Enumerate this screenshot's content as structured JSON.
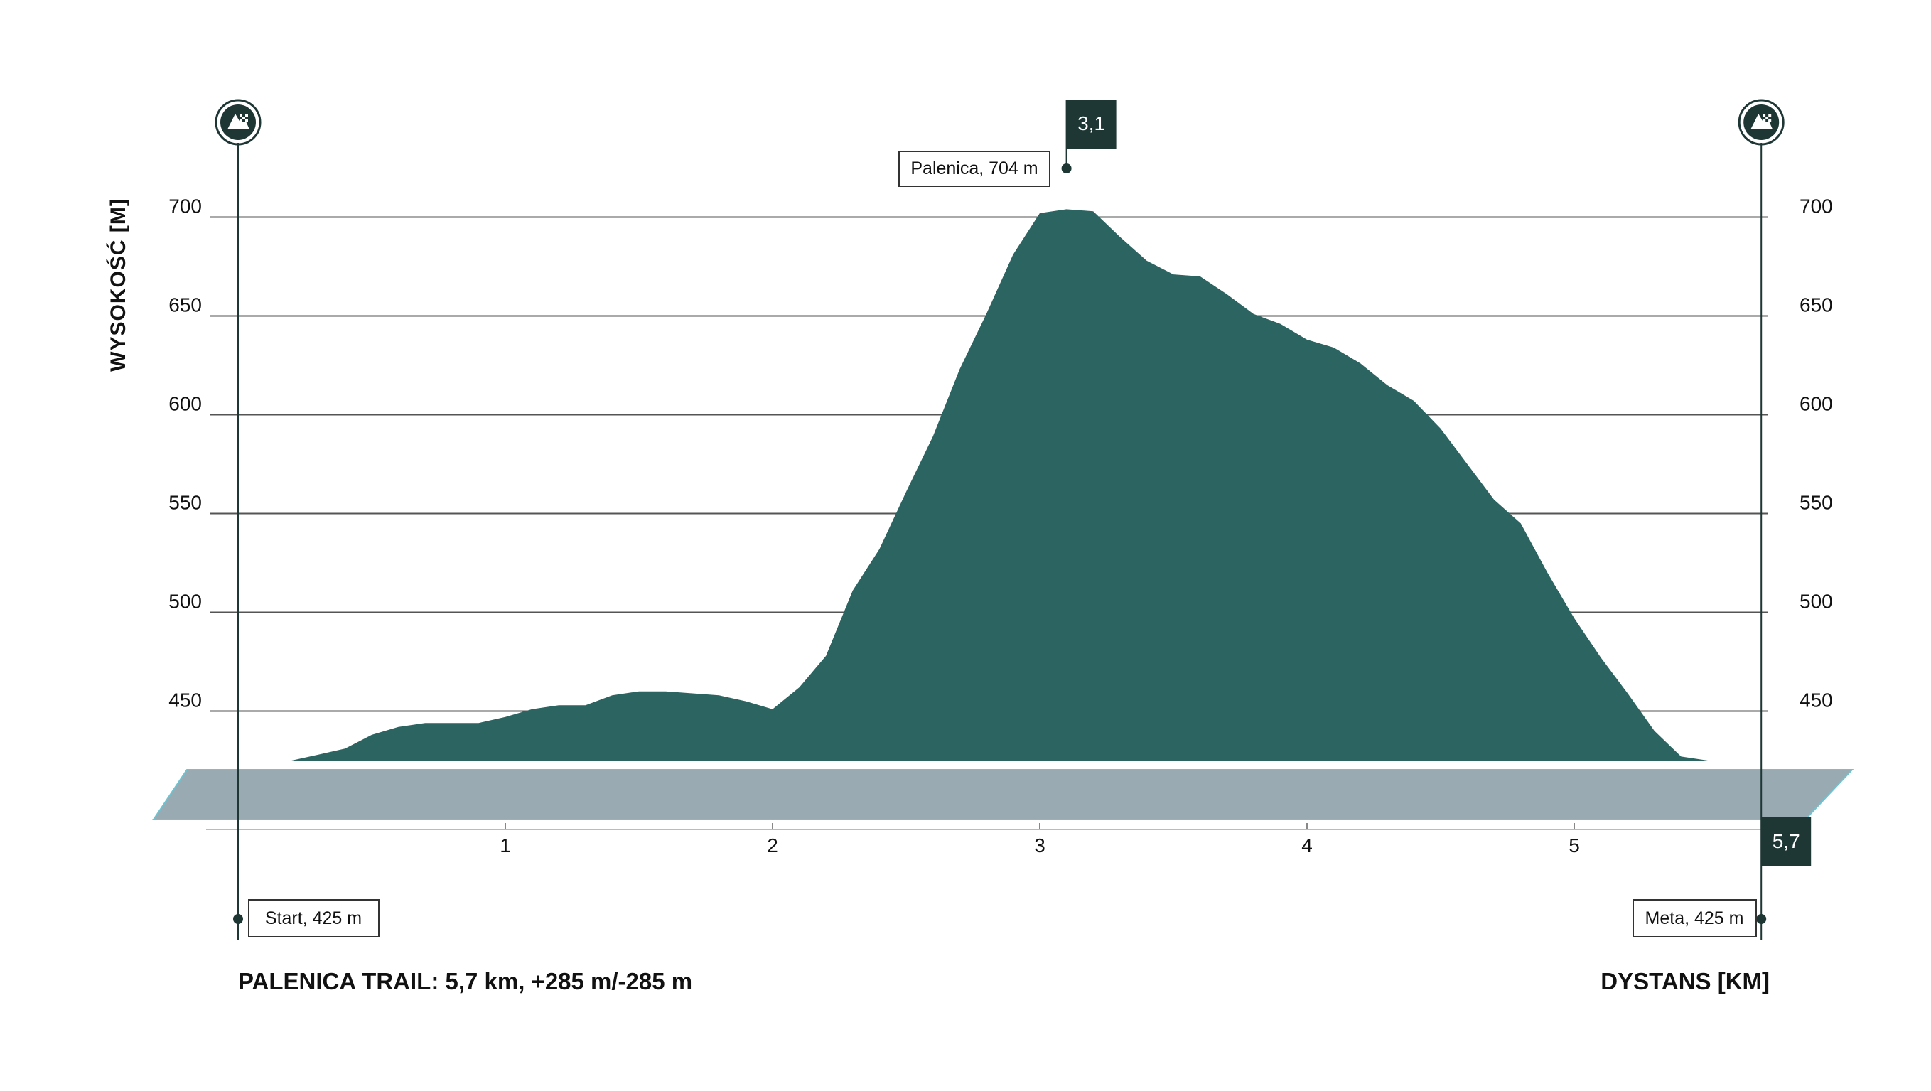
{
  "chart_data": {
    "type": "area",
    "title": "PALENICA TRAIL: 5,7 km, +285 m/-285 m",
    "xlabel": "DYSTANS [KM]",
    "ylabel": "WYSOKOŚĆ [M]",
    "xlim": [
      0,
      5.7
    ],
    "ylim": [
      425,
      704
    ],
    "x_ticks": [
      {
        "value": 1,
        "label": "1"
      },
      {
        "value": 2,
        "label": "2"
      },
      {
        "value": 3,
        "label": "3"
      },
      {
        "value": 4,
        "label": "4"
      },
      {
        "value": 5,
        "label": "5"
      }
    ],
    "y_ticks": [
      {
        "value": 450,
        "label": "450"
      },
      {
        "value": 500,
        "label": "500"
      },
      {
        "value": 550,
        "label": "550"
      },
      {
        "value": 600,
        "label": "600"
      },
      {
        "value": 650,
        "label": "650"
      },
      {
        "value": 700,
        "label": "700"
      }
    ],
    "grid": true,
    "colors": {
      "area": "#2b6461",
      "base_band": "#9aaab2",
      "band_edge": "#6cc4d2",
      "marker": "#1e3735",
      "grid": "#555555"
    },
    "series": [
      {
        "x": [
          0,
          0.2,
          0.3,
          0.4,
          0.5,
          0.6,
          0.7,
          0.8,
          0.9,
          1.0,
          1.1,
          1.2,
          1.3,
          1.4,
          1.5,
          1.6,
          1.7,
          1.8,
          1.9,
          2.0,
          2.1,
          2.2,
          2.3,
          2.4,
          2.5,
          2.6,
          2.7,
          2.8,
          2.9,
          3.0,
          3.1,
          3.2,
          3.3,
          3.4,
          3.5,
          3.6,
          3.7,
          3.8,
          3.9,
          4.0,
          4.1,
          4.2,
          4.3,
          4.4,
          4.5,
          4.6,
          4.7,
          4.8,
          4.9,
          5.0,
          5.1,
          5.2,
          5.3,
          5.4,
          5.5,
          5.6,
          5.7
        ],
        "y": [
          425,
          425,
          428,
          431,
          438,
          442,
          444,
          444,
          444,
          447,
          451,
          453,
          453,
          458,
          460,
          460,
          459,
          458,
          455,
          451,
          462,
          478,
          511,
          532,
          561,
          589,
          623,
          651,
          681,
          702,
          704,
          703,
          690,
          678,
          671,
          670,
          661,
          651,
          646,
          638,
          634,
          626,
          615,
          607,
          593,
          575,
          557,
          545,
          520,
          497,
          477,
          459,
          440,
          427,
          425,
          425,
          425
        ]
      }
    ],
    "annotations": {
      "summit_label": "Palenica, 704 m",
      "summit_flag": "3,1",
      "summit_x": 3.1,
      "summit_y": 704,
      "end_flag": "5,7",
      "end_x": 5.7,
      "start_label": "Start, 425 m",
      "finish_label": "Meta, 425 m",
      "start_icon": "checkered-flag-icon",
      "finish_icon": "checkered-flag-icon"
    }
  }
}
